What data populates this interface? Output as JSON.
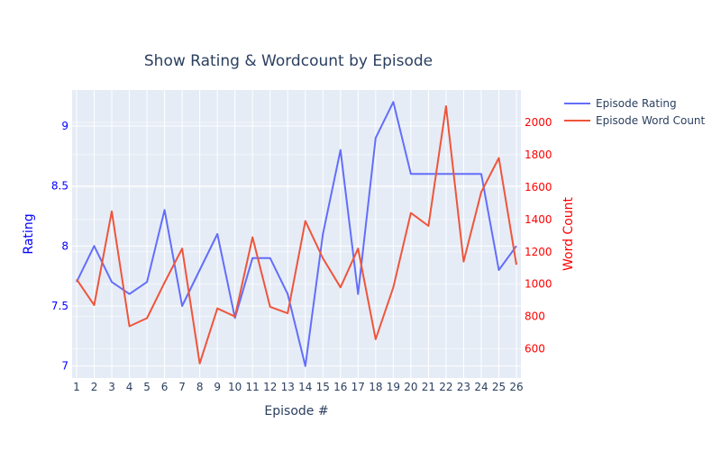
{
  "chart_data": {
    "type": "line",
    "title": "Show Rating & Wordcount by Episode",
    "xlabel": "Episode #",
    "ylabel": "Rating",
    "y2label": "Word Count",
    "x": [
      1,
      2,
      3,
      4,
      5,
      6,
      7,
      8,
      9,
      10,
      11,
      12,
      13,
      14,
      15,
      16,
      17,
      18,
      19,
      20,
      21,
      22,
      23,
      24,
      25,
      26
    ],
    "xlim": [
      1,
      26
    ],
    "ylim": [
      6.9,
      9.3
    ],
    "y2lim": [
      420,
      2200
    ],
    "yticks": [
      7,
      7.5,
      8,
      8.5,
      9
    ],
    "y2ticks": [
      600,
      800,
      1000,
      1200,
      1400,
      1600,
      1800,
      2000
    ],
    "grid": true,
    "legend": "top-right",
    "series": [
      {
        "name": "Episode Rating",
        "axis": "left",
        "color": "#636efa",
        "values": [
          7.7,
          8.0,
          7.7,
          7.6,
          7.7,
          8.3,
          7.5,
          7.8,
          8.1,
          7.4,
          7.9,
          7.9,
          7.6,
          7.0,
          8.1,
          8.8,
          7.6,
          8.9,
          9.2,
          8.6,
          8.6,
          8.6,
          8.6,
          8.6,
          7.8,
          8.0
        ]
      },
      {
        "name": "Episode Word Count",
        "axis": "right",
        "color": "#ef553b",
        "values": [
          1030,
          870,
          1450,
          740,
          790,
          1010,
          1220,
          510,
          850,
          800,
          1290,
          860,
          820,
          1390,
          1160,
          980,
          1220,
          660,
          980,
          1440,
          1360,
          2100,
          1140,
          1570,
          1780,
          1120
        ]
      }
    ],
    "colors": {
      "left_axis": "#0000ff",
      "right_axis": "#ff0000",
      "plot_bg": "#e5ecf6",
      "grid": "#ffffff"
    }
  }
}
